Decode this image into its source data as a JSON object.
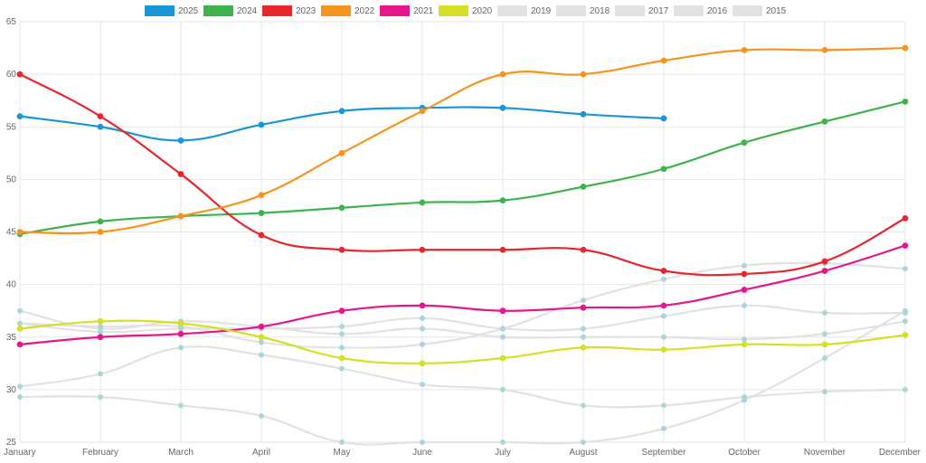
{
  "chart_data": {
    "type": "line",
    "categories": [
      "January",
      "February",
      "March",
      "April",
      "May",
      "June",
      "July",
      "August",
      "September",
      "October",
      "November",
      "December"
    ],
    "ylim": [
      25,
      65
    ],
    "yticks": [
      25,
      30,
      35,
      40,
      45,
      50,
      55,
      60,
      65
    ],
    "grid": true,
    "legend_position": "top-center",
    "series": [
      {
        "name": "2025",
        "color": "#1a96d4",
        "active": true,
        "values": [
          56,
          55,
          53.7,
          55.2,
          56.5,
          56.8,
          56.8,
          56.2,
          55.8,
          null,
          null,
          null
        ]
      },
      {
        "name": "2024",
        "color": "#3cb44b",
        "active": true,
        "values": [
          44.8,
          46,
          46.5,
          46.8,
          47.3,
          47.8,
          48,
          49.3,
          51,
          53.5,
          55.5,
          57.4
        ]
      },
      {
        "name": "2023",
        "color": "#e6272c",
        "active": true,
        "values": [
          60,
          56,
          50.5,
          44.7,
          43.3,
          43.3,
          43.3,
          43.3,
          41.3,
          41,
          42.2,
          46.3
        ]
      },
      {
        "name": "2022",
        "color": "#f7941d",
        "active": true,
        "values": [
          45,
          45,
          46.5,
          48.5,
          52.5,
          56.5,
          60,
          60,
          61.3,
          62.3,
          62.3,
          62.5
        ]
      },
      {
        "name": "2021",
        "color": "#e6168c",
        "active": true,
        "values": [
          34.3,
          35,
          35.3,
          36,
          37.5,
          38,
          37.5,
          37.8,
          38,
          39.5,
          41.3,
          43.7
        ]
      },
      {
        "name": "2020",
        "color": "#d4e024",
        "active": true,
        "values": [
          35.8,
          36.5,
          36.3,
          35,
          33,
          32.5,
          33,
          34,
          33.8,
          34.3,
          34.3,
          35.2
        ]
      },
      {
        "name": "2019",
        "color": "#e2e2e2",
        "active": false,
        "values": [
          37.5,
          35.8,
          36.5,
          36,
          35.3,
          35.8,
          35,
          35,
          35,
          34.8,
          35.3,
          36.5
        ]
      },
      {
        "name": "2018",
        "color": "#e2e2e2",
        "active": false,
        "values": [
          36.3,
          35.5,
          35.8,
          35.8,
          36,
          36.8,
          35.8,
          35.8,
          37,
          38,
          37.3,
          37.3
        ]
      },
      {
        "name": "2017",
        "color": "#e2e2e2",
        "active": false,
        "values": [
          30.3,
          31.5,
          34,
          33.3,
          32,
          30.5,
          30,
          28.5,
          28.5,
          29.3,
          29.8,
          30
        ]
      },
      {
        "name": "2016",
        "color": "#e2e2e2",
        "active": false,
        "values": [
          29.3,
          29.3,
          28.5,
          27.5,
          25,
          25,
          25,
          25,
          26.3,
          29,
          33,
          37.5
        ]
      },
      {
        "name": "2015",
        "color": "#e2e2e2",
        "active": false,
        "values": [
          36.3,
          36,
          36,
          34.5,
          34,
          34.3,
          35.8,
          38.5,
          40.5,
          41.8,
          42,
          41.5
        ]
      }
    ]
  }
}
